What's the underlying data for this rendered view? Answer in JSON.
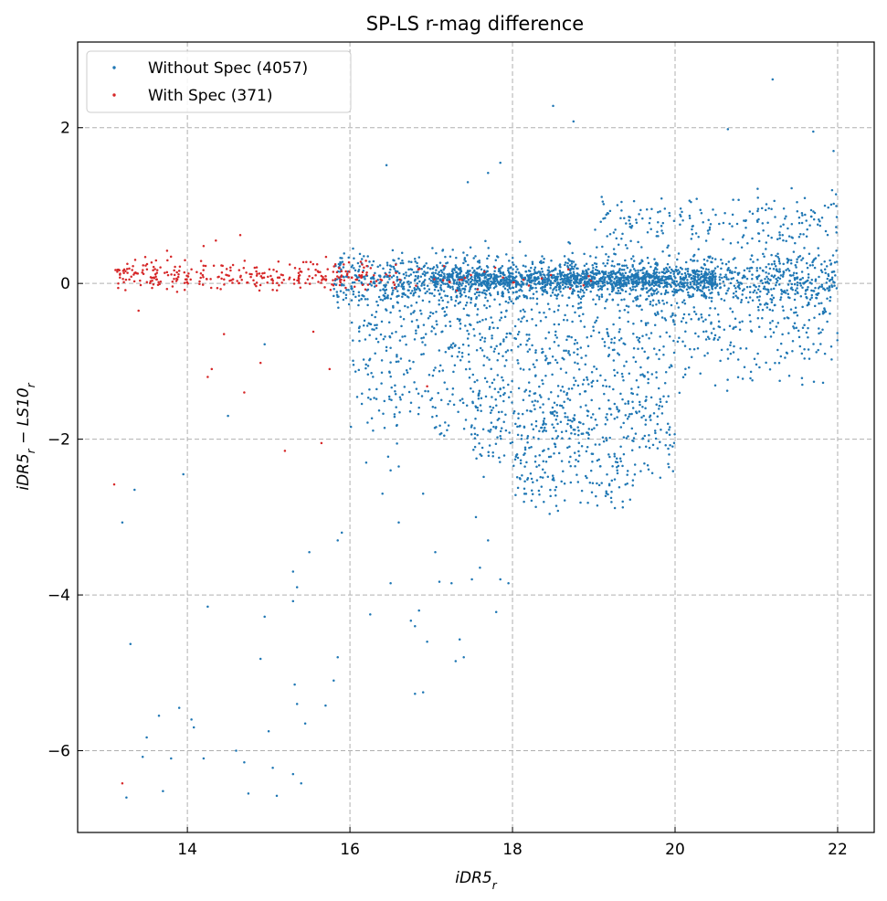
{
  "chart_data": {
    "type": "scatter",
    "title": "SP-LS r-mag difference",
    "xlabel": "iDR5_r",
    "ylabel": "iDR5_r − LS10_r",
    "xlim": [
      12.65,
      22.45
    ],
    "ylim": [
      -7.05,
      3.1
    ],
    "xticks": [
      14,
      16,
      18,
      20,
      22
    ],
    "yticks": [
      -6,
      -4,
      -2,
      0,
      2
    ],
    "xtick_labels": [
      "14",
      "16",
      "18",
      "20",
      "22"
    ],
    "ytick_labels": [
      "−6",
      "−4",
      "−2",
      "0",
      "2"
    ],
    "grid": true,
    "legend_position": "top-left",
    "series": [
      {
        "name": "Without Spec (4057)",
        "color": "#1f77b4",
        "outliers": [
          [
            13.2,
            -3.07
          ],
          [
            13.35,
            -2.65
          ],
          [
            13.3,
            -4.63
          ],
          [
            13.25,
            -6.6
          ],
          [
            13.45,
            -6.08
          ],
          [
            13.5,
            -5.83
          ],
          [
            13.65,
            -5.55
          ],
          [
            13.7,
            -6.52
          ],
          [
            13.8,
            -6.1
          ],
          [
            13.9,
            -5.45
          ],
          [
            14.05,
            -5.6
          ],
          [
            14.08,
            -5.7
          ],
          [
            14.25,
            -4.15
          ],
          [
            14.2,
            -6.1
          ],
          [
            14.6,
            -6.0
          ],
          [
            14.7,
            -6.15
          ],
          [
            14.75,
            -6.55
          ],
          [
            14.9,
            -4.82
          ],
          [
            14.95,
            -4.28
          ],
          [
            15.0,
            -5.75
          ],
          [
            15.05,
            -6.22
          ],
          [
            15.1,
            -6.58
          ],
          [
            15.3,
            -6.3
          ],
          [
            15.32,
            -5.15
          ],
          [
            15.35,
            -5.4
          ],
          [
            15.4,
            -6.42
          ],
          [
            15.45,
            -5.65
          ],
          [
            15.5,
            -3.45
          ],
          [
            15.3,
            -3.7
          ],
          [
            15.3,
            -4.08
          ],
          [
            15.35,
            -3.9
          ],
          [
            15.7,
            -5.42
          ],
          [
            15.8,
            -5.1
          ],
          [
            15.85,
            -3.3
          ],
          [
            15.9,
            -3.2
          ],
          [
            15.85,
            -4.8
          ],
          [
            13.95,
            -2.45
          ],
          [
            14.5,
            -1.7
          ],
          [
            14.95,
            -0.78
          ],
          [
            16.25,
            -4.25
          ],
          [
            16.5,
            -3.85
          ],
          [
            16.6,
            -3.07
          ],
          [
            16.75,
            -4.33
          ],
          [
            16.8,
            -4.4
          ],
          [
            16.8,
            -5.27
          ],
          [
            16.9,
            -5.25
          ],
          [
            16.95,
            -4.6
          ],
          [
            16.85,
            -4.2
          ],
          [
            17.05,
            -3.45
          ],
          [
            17.1,
            -3.83
          ],
          [
            17.25,
            -3.85
          ],
          [
            17.3,
            -4.85
          ],
          [
            17.35,
            -4.57
          ],
          [
            17.4,
            -4.8
          ],
          [
            17.5,
            -3.8
          ],
          [
            17.55,
            -3.0
          ],
          [
            17.6,
            -3.65
          ],
          [
            17.7,
            -3.3
          ],
          [
            17.85,
            -3.8
          ],
          [
            17.95,
            -3.85
          ],
          [
            17.8,
            -4.22
          ],
          [
            16.6,
            -2.35
          ],
          [
            16.9,
            -2.7
          ],
          [
            16.5,
            -2.4
          ],
          [
            16.4,
            -2.7
          ],
          [
            16.2,
            -2.3
          ],
          [
            16.45,
            1.52
          ],
          [
            17.45,
            1.3
          ],
          [
            17.7,
            1.42
          ],
          [
            17.85,
            1.55
          ],
          [
            18.5,
            2.28
          ],
          [
            18.75,
            2.08
          ],
          [
            20.65,
            1.98
          ],
          [
            21.2,
            2.62
          ],
          [
            21.7,
            1.95
          ],
          [
            21.95,
            1.7
          ]
        ],
        "clusters": [
          {
            "x": [
              15.8,
              22.0
            ],
            "y_center": 0.05,
            "y_spread": 0.35,
            "count": 1500
          },
          {
            "x": [
              17.0,
              20.5
            ],
            "y_center": 0.05,
            "y_spread": 0.12,
            "count": 900
          },
          {
            "x": [
              16.0,
              22.0
            ],
            "y_center": -0.6,
            "y_spread": 0.7,
            "count": 700
          },
          {
            "x": [
              17.5,
              20.0
            ],
            "y_center": -1.7,
            "y_spread": 0.7,
            "count": 450
          },
          {
            "x": [
              18.0,
              19.5
            ],
            "y_center": -2.5,
            "y_spread": 0.4,
            "count": 120
          },
          {
            "x": [
              19.0,
              22.0
            ],
            "y_center": 0.8,
            "y_spread": 0.35,
            "count": 200
          },
          {
            "x": [
              16.0,
              17.5
            ],
            "y_center": -1.5,
            "y_spread": 0.6,
            "count": 100
          }
        ]
      },
      {
        "name": "With Spec (371)",
        "color": "#d62728",
        "outliers": [
          [
            13.1,
            -2.58
          ],
          [
            13.2,
            -6.42
          ],
          [
            13.4,
            -0.35
          ],
          [
            14.25,
            -1.2
          ],
          [
            14.3,
            -1.1
          ],
          [
            14.7,
            -1.4
          ],
          [
            14.9,
            -1.02
          ],
          [
            15.2,
            -2.15
          ],
          [
            15.65,
            -2.05
          ],
          [
            15.75,
            -1.1
          ],
          [
            14.45,
            -0.65
          ],
          [
            15.55,
            -0.62
          ],
          [
            16.95,
            -1.32
          ],
          [
            14.65,
            0.62
          ],
          [
            13.75,
            0.42
          ],
          [
            14.2,
            0.48
          ],
          [
            14.35,
            0.55
          ]
        ],
        "clusters": [
          {
            "x": [
              13.1,
              16.3
            ],
            "y_center": 0.1,
            "y_spread": 0.18,
            "count": 300
          },
          {
            "x": [
              16.3,
              19.0
            ],
            "y_center": 0.05,
            "y_spread": 0.15,
            "count": 40
          }
        ]
      }
    ]
  }
}
